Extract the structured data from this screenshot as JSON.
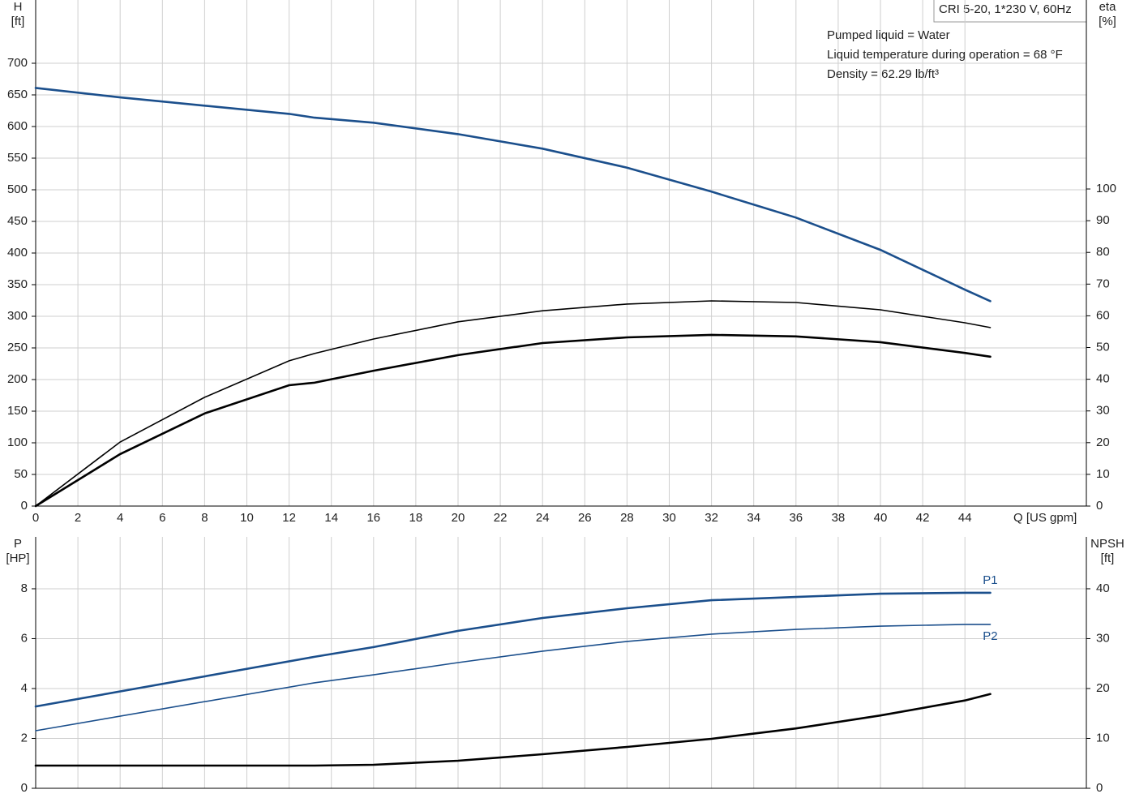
{
  "chart_data": [
    {
      "type": "line",
      "title": "CRI 5-20, 1*230 V, 60Hz",
      "annotations": [
        "Pumped liquid = Water",
        "Liquid temperature during operation = 68 °F",
        "Density = 62.29 lb/ft³"
      ],
      "ylabel": [
        "H",
        "[ft]"
      ],
      "y2label": [
        "eta",
        "[%]"
      ],
      "xlabel": "Q [US gpm]",
      "x": [
        0,
        4,
        8,
        12,
        13.2,
        16,
        20,
        24,
        28,
        32,
        36,
        40,
        44,
        45.2
      ],
      "series": [
        {
          "color": "#1b4f8c",
          "width": 2.6,
          "values": [
            661,
            646,
            633,
            620,
            614,
            606,
            588,
            565,
            535,
            497,
            456,
            405,
            342,
            324
          ]
        },
        {
          "color": "#000000",
          "width": 1.6,
          "axis": "y2",
          "values": [
            0,
            20.2,
            34.3,
            45.8,
            48.1,
            52.7,
            58.1,
            61.6,
            63.7,
            64.7,
            64.2,
            61.9,
            57.8,
            56.3
          ]
        },
        {
          "color": "#000000",
          "width": 2.6,
          "axis": "y2",
          "values": [
            0,
            16.4,
            29.2,
            38.1,
            38.9,
            42.7,
            47.6,
            51.4,
            53.2,
            54.0,
            53.5,
            51.7,
            48.3,
            47.1
          ]
        }
      ],
      "xlim": [
        0,
        49.75
      ],
      "xticks": [
        0,
        2,
        4,
        6,
        8,
        10,
        12,
        14,
        16,
        18,
        20,
        22,
        24,
        26,
        28,
        30,
        32,
        34,
        36,
        38,
        40,
        42,
        44
      ],
      "ylim": [
        0,
        800
      ],
      "yticks": [
        0,
        50,
        100,
        150,
        200,
        250,
        300,
        350,
        400,
        450,
        500,
        550,
        600,
        650,
        700
      ],
      "y2lim": [
        0,
        159.6
      ],
      "y2ticks": [
        0,
        10,
        20,
        30,
        40,
        50,
        60,
        70,
        80,
        90,
        100
      ],
      "grid": true
    },
    {
      "type": "line",
      "ylabel": [
        "P",
        "[HP]"
      ],
      "y2label": [
        "NPSH",
        "[ft]"
      ],
      "x": [
        0,
        13.2,
        16,
        20,
        24,
        28,
        32,
        36,
        40,
        44,
        45.2
      ],
      "series": [
        {
          "name": "P1",
          "color": "#1b4f8c",
          "width": 2.6,
          "values": [
            3.28,
            5.27,
            5.66,
            6.31,
            6.83,
            7.22,
            7.54,
            7.67,
            7.8,
            7.84,
            7.84
          ]
        },
        {
          "name": "P2",
          "color": "#1b4f8c",
          "width": 1.6,
          "values": [
            2.31,
            4.23,
            4.55,
            5.04,
            5.5,
            5.89,
            6.18,
            6.37,
            6.5,
            6.57,
            6.57
          ]
        },
        {
          "color": "#000000",
          "width": 2.6,
          "axis": "y2",
          "values": [
            4.55,
            4.55,
            4.72,
            5.53,
            6.83,
            8.29,
            9.92,
            12.0,
            14.6,
            17.6,
            18.9
          ]
        }
      ],
      "xlim": [
        0,
        49.75
      ],
      "ylim": [
        0,
        10.08
      ],
      "yticks": [
        0,
        2,
        4,
        6,
        8
      ],
      "y2lim": [
        0,
        50.4
      ],
      "y2ticks": [
        0,
        10,
        20,
        30,
        40
      ],
      "grid": true
    }
  ]
}
